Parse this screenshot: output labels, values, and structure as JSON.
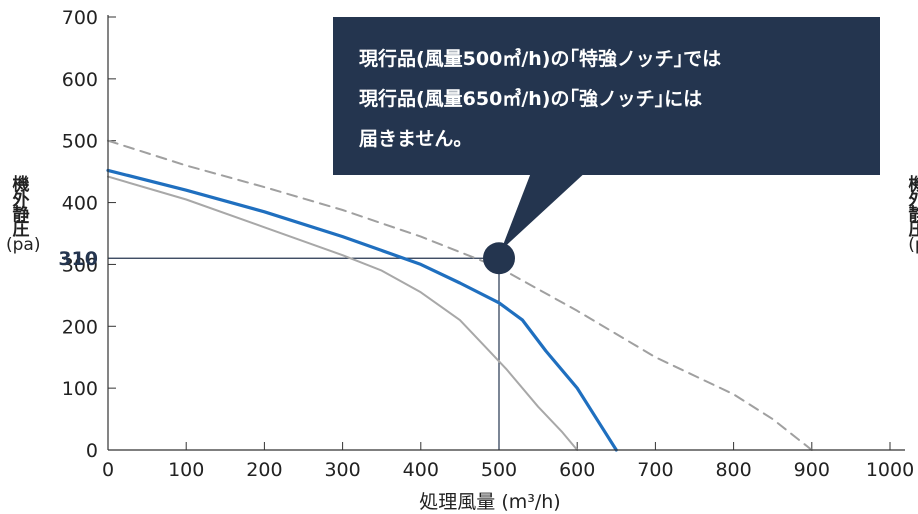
{
  "chart_data": {
    "type": "line",
    "xlabel": "処理風量 (m³/h)",
    "ylabel": [
      "機",
      "外",
      "静",
      "圧",
      "(pa)"
    ],
    "xlim": [
      0,
      1000
    ],
    "ylim": [
      0,
      700
    ],
    "xticks": [
      "0",
      "100",
      "200",
      "300",
      "400",
      "500",
      "600",
      "700",
      "800",
      "900",
      "1000"
    ],
    "yticks": [
      "0",
      "100",
      "200",
      "300",
      "400",
      "500",
      "600",
      "700"
    ],
    "highlight_y_tick": "310",
    "series": [
      {
        "style": "solid-blue",
        "color": "#1f6fbf",
        "x": [
          0,
          100,
          200,
          300,
          400,
          450,
          500,
          530,
          560,
          600,
          630,
          650
        ],
        "y": [
          452,
          420,
          385,
          345,
          300,
          270,
          238,
          210,
          160,
          100,
          40,
          0
        ]
      },
      {
        "style": "solid-gray",
        "color": "#a8a8a8",
        "x": [
          0,
          100,
          200,
          300,
          350,
          400,
          450,
          480,
          510,
          550,
          580,
          600
        ],
        "y": [
          442,
          405,
          360,
          315,
          290,
          255,
          210,
          170,
          130,
          70,
          30,
          0
        ]
      },
      {
        "style": "dashed-gray",
        "color": "#a0a0a0",
        "x": [
          0,
          100,
          200,
          300,
          400,
          500,
          600,
          700,
          800,
          850,
          900
        ],
        "y": [
          500,
          460,
          425,
          388,
          345,
          295,
          225,
          150,
          90,
          50,
          0
        ]
      }
    ],
    "marker": {
      "x": 500,
      "y": 310,
      "color": "#24354f"
    },
    "callout_lines": [
      "現行品(風量500㎥/h)の｢特強ノッチ｣では",
      "現行品(風量650㎥/h)の｢強ノッチ｣には",
      "届きません。"
    ],
    "grid": false
  },
  "right_label_partial": [
    "機",
    "外",
    "静",
    "圧",
    "(p"
  ]
}
